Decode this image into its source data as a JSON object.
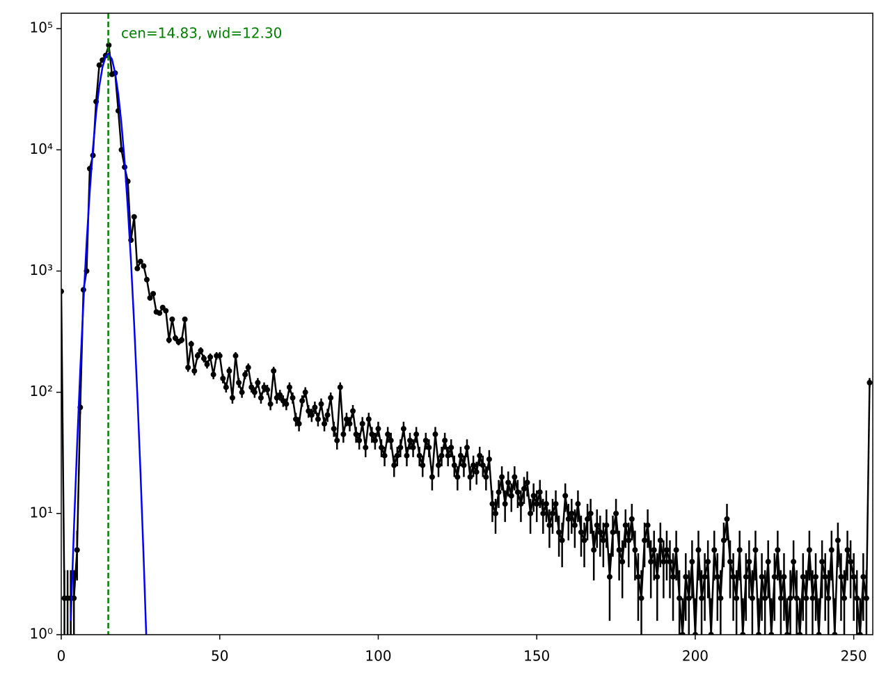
{
  "chart_data": {
    "type": "errorbar",
    "annotation": "cen=14.83, wid=12.30",
    "xlim": [
      0,
      256
    ],
    "xticks": [
      0,
      50,
      100,
      150,
      200,
      250
    ],
    "ylim": [
      1,
      134000
    ],
    "log_y": true,
    "yticks": [
      {
        "value": 1,
        "label": "10⁰"
      },
      {
        "value": 10,
        "label": "10¹"
      },
      {
        "value": 100,
        "label": "10²"
      },
      {
        "value": 1000,
        "label": "10³"
      },
      {
        "value": 10000,
        "label": "10⁴"
      },
      {
        "value": 100000,
        "label": "10⁵"
      }
    ],
    "vline": {
      "x": 14.83,
      "color": "#008000"
    },
    "data": {
      "color": "#000000",
      "x": [
        0,
        1,
        2,
        3,
        4,
        5,
        6,
        7,
        8,
        9,
        10,
        11,
        12,
        13,
        14,
        15,
        16,
        17,
        18,
        19,
        20,
        21,
        22,
        23,
        24,
        25,
        26,
        27,
        28,
        29,
        30,
        31,
        32,
        33,
        34,
        35,
        36,
        37,
        38,
        39,
        40,
        41,
        42,
        43,
        44,
        45,
        46,
        47,
        48,
        49,
        50,
        51,
        52,
        53,
        54,
        55,
        56,
        57,
        58,
        59,
        60,
        61,
        62,
        63,
        64,
        65,
        66,
        67,
        68,
        69,
        70,
        71,
        72,
        73,
        74,
        75,
        76,
        77,
        78,
        79,
        80,
        81,
        82,
        83,
        84,
        85,
        86,
        87,
        88,
        89,
        90,
        91,
        92,
        93,
        94,
        95,
        96,
        97,
        98,
        99,
        100,
        101,
        102,
        103,
        104,
        105,
        106,
        107,
        108,
        109,
        110,
        111,
        112,
        113,
        114,
        115,
        116,
        117,
        118,
        119,
        120,
        121,
        122,
        123,
        124,
        125,
        126,
        127,
        128,
        129,
        130,
        131,
        132,
        133,
        134,
        135,
        136,
        137,
        138,
        139,
        140,
        141,
        142,
        143,
        144,
        145,
        146,
        147,
        148,
        149,
        150,
        151,
        152,
        153,
        154,
        155,
        156,
        157,
        158,
        159,
        160,
        161,
        162,
        163,
        164,
        165,
        166,
        167,
        168,
        169,
        170,
        171,
        172,
        173,
        174,
        175,
        176,
        177,
        178,
        179,
        180,
        181,
        182,
        183,
        184,
        185,
        186,
        187,
        188,
        189,
        190,
        191,
        192,
        193,
        194,
        195,
        196,
        197,
        198,
        199,
        200,
        201,
        202,
        203,
        204,
        205,
        206,
        207,
        208,
        209,
        210,
        211,
        212,
        213,
        214,
        215,
        216,
        217,
        218,
        219,
        220,
        221,
        222,
        223,
        224,
        225,
        226,
        227,
        228,
        229,
        230,
        231,
        232,
        233,
        234,
        235,
        236,
        237,
        238,
        239,
        240,
        241,
        242,
        243,
        244,
        245,
        246,
        247,
        248,
        249,
        250,
        251,
        252,
        253,
        254,
        255
      ],
      "values": [
        680,
        2,
        2,
        2,
        2,
        5,
        75,
        700,
        1000,
        7000,
        9000,
        25000,
        50000,
        55000,
        60000,
        73000,
        42000,
        43000,
        21000,
        10000,
        7200,
        5500,
        1800,
        2800,
        1050,
        1200,
        1100,
        850,
        600,
        650,
        460,
        450,
        500,
        470,
        270,
        400,
        280,
        260,
        270,
        400,
        160,
        250,
        150,
        200,
        220,
        190,
        170,
        195,
        140,
        200,
        200,
        130,
        110,
        150,
        90,
        200,
        120,
        100,
        140,
        160,
        110,
        100,
        120,
        90,
        110,
        105,
        80,
        150,
        90,
        95,
        85,
        80,
        110,
        90,
        60,
        55,
        85,
        100,
        70,
        65,
        75,
        60,
        80,
        55,
        65,
        90,
        50,
        40,
        110,
        45,
        60,
        55,
        70,
        45,
        40,
        55,
        35,
        60,
        45,
        40,
        50,
        35,
        30,
        45,
        40,
        25,
        30,
        35,
        50,
        30,
        40,
        35,
        45,
        30,
        25,
        40,
        35,
        20,
        45,
        25,
        30,
        40,
        30,
        35,
        25,
        20,
        30,
        25,
        35,
        20,
        25,
        22,
        30,
        25,
        20,
        28,
        12,
        10,
        15,
        20,
        12,
        18,
        14,
        20,
        15,
        12,
        16,
        18,
        10,
        14,
        12,
        15,
        10,
        12,
        8,
        10,
        12,
        7,
        6,
        14,
        9,
        10,
        8,
        12,
        7,
        6,
        9,
        10,
        5,
        8,
        7,
        6,
        8,
        3,
        7,
        10,
        5,
        4,
        8,
        6,
        9,
        5,
        3,
        2,
        6,
        8,
        4,
        5,
        3,
        6,
        4,
        5,
        4,
        3,
        5,
        2,
        1,
        3,
        2,
        4,
        1,
        5,
        2,
        3,
        4,
        1,
        5,
        3,
        2,
        6,
        9,
        4,
        3,
        2,
        5,
        1,
        3,
        4,
        2,
        5,
        1,
        3,
        2,
        4,
        1,
        3,
        5,
        2,
        3,
        1,
        2,
        4,
        2,
        1,
        3,
        2,
        5,
        2,
        3,
        1,
        4,
        3,
        2,
        5,
        1,
        6,
        3,
        2,
        5,
        4,
        3,
        2,
        1,
        3,
        2,
        120
      ],
      "errors": [
        26.1,
        1.4,
        1.4,
        1.4,
        1.4,
        2.2,
        8.7,
        26.5,
        31.6,
        83.7,
        94.9,
        158.1,
        223.6,
        234.5,
        244.9,
        270.2,
        204.9,
        207.4,
        144.9,
        100,
        84.9,
        74.2,
        42.4,
        52.9,
        32.4,
        34.6,
        33.2,
        29.2,
        24.5,
        25.5,
        21.4,
        21.2,
        22.4,
        21.7,
        16.4,
        20,
        16.7,
        16.1,
        16.4,
        20,
        12.6,
        15.8,
        12.2,
        14.1,
        14.8,
        13.8,
        13,
        14,
        11.8,
        14.1,
        14.1,
        11.4,
        10.5,
        12.2,
        9.5,
        14.1,
        11,
        10,
        11.8,
        12.6,
        10.5,
        10,
        11,
        9.5,
        10.5,
        10.2,
        8.9,
        12.2,
        9.5,
        9.7,
        9.2,
        8.9,
        10.5,
        9.5,
        7.7,
        7.4,
        9.2,
        10,
        8.4,
        8.1,
        8.7,
        7.7,
        8.9,
        7.4,
        8.1,
        9.5,
        7.1,
        6.3,
        10.5,
        6.7,
        7.7,
        7.4,
        8.4,
        6.7,
        6.3,
        7.4,
        5.9,
        7.7,
        6.7,
        6.3,
        7.1,
        5.9,
        5.5,
        6.7,
        6.3,
        5,
        5.5,
        5.9,
        7.1,
        5.5,
        6.3,
        5.9,
        6.7,
        5.5,
        5,
        6.3,
        5.9,
        4.5,
        6.7,
        5,
        5.5,
        6.3,
        5.5,
        5.9,
        5,
        4.5,
        5.5,
        5,
        5.9,
        4.5,
        5,
        4.7,
        5.5,
        5,
        4.5,
        5.3,
        3.5,
        3.2,
        3.9,
        4.5,
        3.5,
        4.2,
        3.7,
        4.5,
        3.9,
        3.5,
        4,
        4.2,
        3.2,
        3.7,
        3.5,
        3.9,
        3.2,
        3.5,
        2.8,
        3.2,
        3.5,
        2.6,
        2.4,
        3.7,
        3,
        3.2,
        2.8,
        3.5,
        2.6,
        2.4,
        3,
        3.2,
        2.2,
        2.8,
        2.6,
        2.4,
        2.8,
        1.7,
        2.6,
        3.2,
        2.2,
        2,
        2.8,
        2.4,
        3,
        2.2,
        1.7,
        1.4,
        2.4,
        2.8,
        2,
        2.2,
        1.7,
        2.4,
        2,
        2.2,
        2,
        1.7,
        2.2,
        1.4,
        1,
        1.7,
        1.4,
        2,
        1,
        2.2,
        1.4,
        1.7,
        2,
        1,
        2.2,
        1.7,
        1.4,
        2.4,
        3,
        2,
        1.7,
        1.4,
        2.2,
        1,
        1.7,
        2,
        1.4,
        2.2,
        1,
        1.7,
        1.4,
        2,
        1,
        1.7,
        2.2,
        1.4,
        1.7,
        1,
        1.4,
        2,
        1.4,
        1,
        1.7,
        1.4,
        2.2,
        1.4,
        1.7,
        1,
        2,
        1.7,
        1.4,
        2.2,
        1,
        2.4,
        1.7,
        1.4,
        2.2,
        2,
        1.7,
        1.4,
        1,
        1.7,
        1.4,
        11
      ]
    },
    "fit": {
      "color": "#0000ff",
      "x": [
        3,
        4,
        5,
        6,
        7,
        8,
        9,
        10,
        11,
        12,
        13,
        14,
        14.83,
        16,
        17,
        18,
        19,
        20,
        21,
        22,
        23,
        24,
        25,
        26,
        27
      ],
      "values": [
        1.3,
        7.5,
        36.6,
        154,
        553,
        1720,
        4550,
        10300,
        20100,
        33500,
        48000,
        58800,
        62000,
        56000,
        43100,
        28700,
        16300,
        8000,
        3300,
        1200,
        365,
        96,
        21.7,
        4.2,
        0.7
      ]
    }
  }
}
